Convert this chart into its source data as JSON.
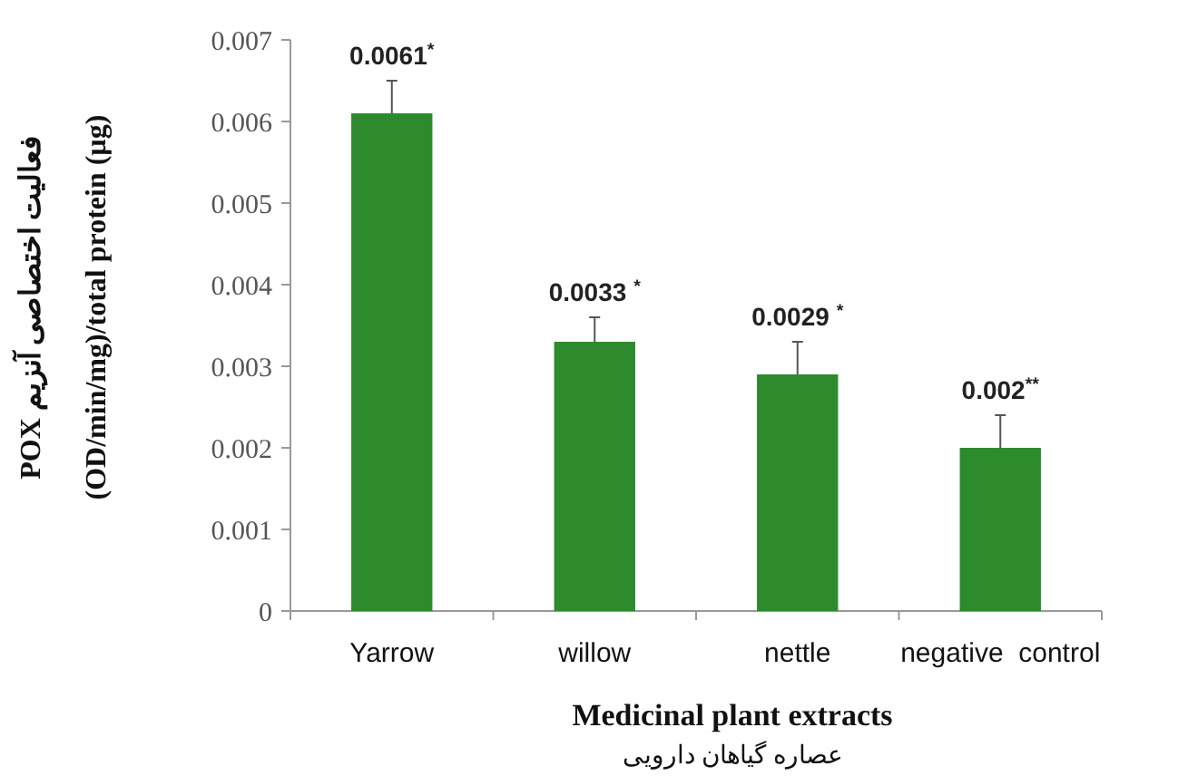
{
  "chart_data": {
    "type": "bar",
    "categories": [
      "Yarrow",
      "willow",
      "nettle",
      "negative  control"
    ],
    "values": [
      0.0061,
      0.0033,
      0.0029,
      0.002
    ],
    "errors": [
      0.0004,
      0.0003,
      0.0004,
      0.0004
    ],
    "value_labels": [
      "0.0061$^{*}$",
      "0.0033 $^{*}$",
      "0.0029 $^{*}$",
      "0.002$^{**}$"
    ],
    "color": "#2d8a2d",
    "ylim": [
      0,
      0.007
    ],
    "yticks": [
      {
        "value": 0,
        "label": "0"
      },
      {
        "value": 0.001,
        "label": "0.001"
      },
      {
        "value": 0.002,
        "label": "0.002"
      },
      {
        "value": 0.003,
        "label": "0.003"
      },
      {
        "value": 0.004,
        "label": "0.004"
      },
      {
        "value": 0.005,
        "label": "0.005"
      },
      {
        "value": 0.006,
        "label": "0.006"
      },
      {
        "value": 0.007,
        "label": "0.007"
      }
    ],
    "xlabel": "Medicinal plant extracts\nعصاره گیاهان دارویی",
    "ylabel": "POX فعالیت اختصاصی آنزیم\n(OD/min/mg)/total protein (µg)",
    "grid": false
  }
}
